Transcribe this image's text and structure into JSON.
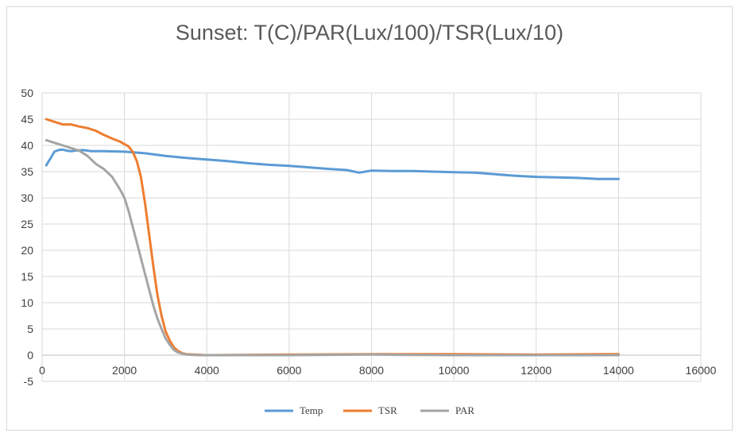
{
  "chart_data": {
    "type": "line",
    "title": "Sunset: T(C)/PAR(Lux/100)/TSR(Lux/10)",
    "xlabel": "",
    "ylabel": "",
    "xlim": [
      0,
      16000
    ],
    "ylim": [
      -5,
      50
    ],
    "x_ticks": [
      0,
      2000,
      4000,
      6000,
      8000,
      10000,
      12000,
      14000,
      16000
    ],
    "y_ticks": [
      -5,
      0,
      5,
      10,
      15,
      20,
      25,
      30,
      35,
      40,
      45,
      50
    ],
    "grid": true,
    "legend_position": "bottom",
    "series": [
      {
        "name": "Temp",
        "color": "#5b9bd5",
        "points": [
          [
            100,
            36.2
          ],
          [
            200,
            37.5
          ],
          [
            300,
            38.8
          ],
          [
            400,
            39.1
          ],
          [
            500,
            39.2
          ],
          [
            600,
            39.0
          ],
          [
            700,
            38.9
          ],
          [
            800,
            39.0
          ],
          [
            1000,
            39.1
          ],
          [
            1200,
            38.9
          ],
          [
            1500,
            38.9
          ],
          [
            2000,
            38.8
          ],
          [
            2500,
            38.5
          ],
          [
            3000,
            38.0
          ],
          [
            3500,
            37.6
          ],
          [
            4000,
            37.3
          ],
          [
            4500,
            37.0
          ],
          [
            5000,
            36.6
          ],
          [
            5500,
            36.3
          ],
          [
            6000,
            36.1
          ],
          [
            6500,
            35.8
          ],
          [
            7000,
            35.5
          ],
          [
            7400,
            35.3
          ],
          [
            7700,
            34.8
          ],
          [
            8000,
            35.2
          ],
          [
            8500,
            35.1
          ],
          [
            9000,
            35.1
          ],
          [
            9500,
            35.0
          ],
          [
            10000,
            34.9
          ],
          [
            10500,
            34.8
          ],
          [
            11000,
            34.5
          ],
          [
            11500,
            34.2
          ],
          [
            12000,
            34.0
          ],
          [
            12500,
            33.9
          ],
          [
            13000,
            33.8
          ],
          [
            13500,
            33.6
          ],
          [
            14000,
            33.6
          ]
        ]
      },
      {
        "name": "TSR",
        "color": "#ed7d31",
        "points": [
          [
            100,
            45.0
          ],
          [
            300,
            44.5
          ],
          [
            500,
            44.0
          ],
          [
            700,
            44.0
          ],
          [
            900,
            43.6
          ],
          [
            1100,
            43.3
          ],
          [
            1300,
            42.8
          ],
          [
            1500,
            42.0
          ],
          [
            1700,
            41.3
          ],
          [
            1900,
            40.7
          ],
          [
            2100,
            39.8
          ],
          [
            2200,
            38.8
          ],
          [
            2300,
            37.0
          ],
          [
            2400,
            34.0
          ],
          [
            2500,
            29.0
          ],
          [
            2600,
            23.0
          ],
          [
            2700,
            17.0
          ],
          [
            2800,
            11.5
          ],
          [
            2900,
            7.5
          ],
          [
            3000,
            4.5
          ],
          [
            3100,
            2.8
          ],
          [
            3200,
            1.5
          ],
          [
            3300,
            0.8
          ],
          [
            3400,
            0.4
          ],
          [
            3500,
            0.2
          ],
          [
            3700,
            0.1
          ],
          [
            4000,
            0.0
          ],
          [
            6000,
            0.1
          ],
          [
            8000,
            0.2
          ],
          [
            10000,
            0.2
          ],
          [
            12000,
            0.1
          ],
          [
            14000,
            0.2
          ]
        ]
      },
      {
        "name": "PAR",
        "color": "#a5a5a5",
        "points": [
          [
            100,
            41.0
          ],
          [
            300,
            40.5
          ],
          [
            500,
            40.0
          ],
          [
            700,
            39.5
          ],
          [
            900,
            39.0
          ],
          [
            1100,
            38.0
          ],
          [
            1300,
            36.5
          ],
          [
            1500,
            35.5
          ],
          [
            1700,
            34.0
          ],
          [
            1900,
            31.5
          ],
          [
            2000,
            30.0
          ],
          [
            2100,
            27.5
          ],
          [
            2200,
            24.5
          ],
          [
            2300,
            21.5
          ],
          [
            2400,
            18.5
          ],
          [
            2500,
            15.5
          ],
          [
            2600,
            12.5
          ],
          [
            2700,
            9.5
          ],
          [
            2800,
            7.0
          ],
          [
            2900,
            5.0
          ],
          [
            3000,
            3.2
          ],
          [
            3100,
            2.0
          ],
          [
            3200,
            1.0
          ],
          [
            3300,
            0.5
          ],
          [
            3500,
            0.1
          ],
          [
            3800,
            0.0
          ],
          [
            6000,
            0.0
          ],
          [
            8000,
            0.1
          ],
          [
            10000,
            0.0
          ],
          [
            12000,
            0.0
          ],
          [
            14000,
            0.0
          ]
        ]
      }
    ]
  }
}
